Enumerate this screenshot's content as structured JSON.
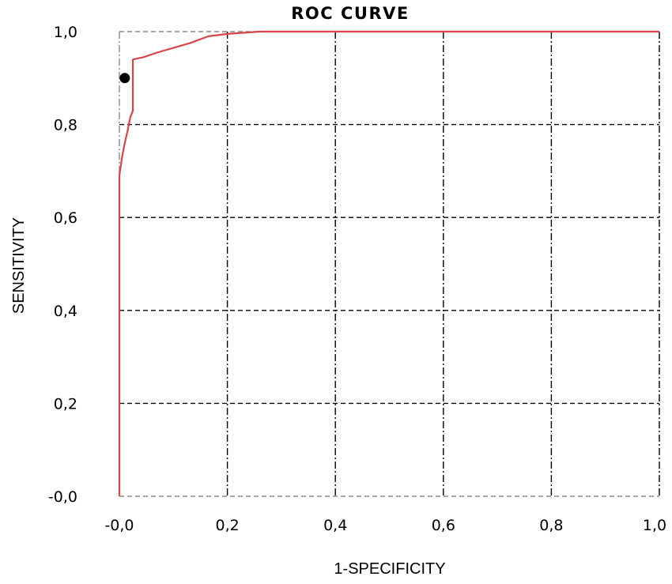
{
  "chart_data": {
    "type": "line",
    "title": "ROC CURVE",
    "xlabel": "1-SPECIFICITY",
    "ylabel": "SENSITIVITY",
    "xlim": [
      0,
      1
    ],
    "ylim": [
      0,
      1
    ],
    "x_tick_labels": [
      "-0,0",
      "0,2",
      "0,4",
      "0,6",
      "0,8",
      "1,0"
    ],
    "y_tick_labels": [
      "-0,0",
      "0,2",
      "0,4",
      "0,6",
      "0,8",
      "1,0"
    ],
    "x_ticks": [
      0,
      0.2,
      0.4,
      0.6,
      0.8,
      1.0
    ],
    "y_ticks": [
      0,
      0.2,
      0.4,
      0.6,
      0.8,
      1.0
    ],
    "grid": true,
    "series": [
      {
        "color": "#d9464a",
        "x": [
          0.0,
          0.0,
          0.005,
          0.01,
          0.015,
          0.02,
          0.025,
          0.025,
          0.025,
          0.045,
          0.07,
          0.1,
          0.13,
          0.165,
          0.2,
          0.26,
          1.0
        ],
        "y": [
          0.0,
          0.69,
          0.73,
          0.76,
          0.785,
          0.815,
          0.83,
          0.94,
          0.94,
          0.945,
          0.955,
          0.965,
          0.975,
          0.99,
          0.995,
          1.0,
          1.0
        ]
      }
    ],
    "points": [
      {
        "x": 0.01,
        "y": 0.9,
        "color": "#000000"
      }
    ]
  }
}
